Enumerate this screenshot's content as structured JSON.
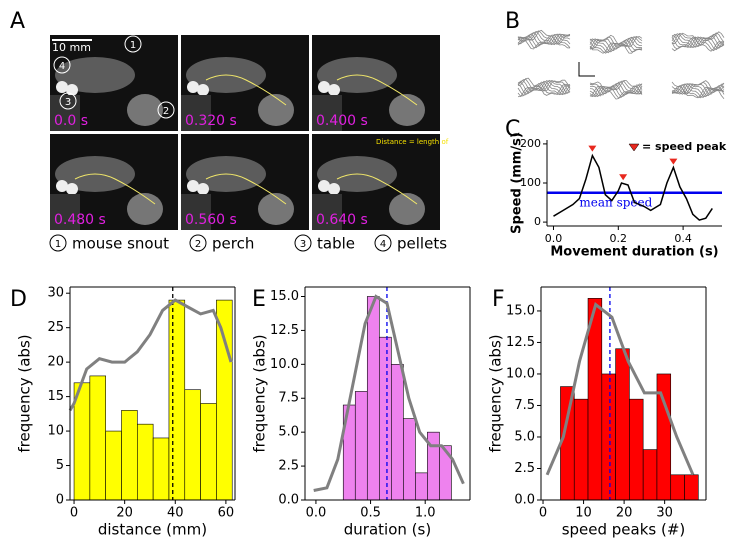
{
  "panel_labels": [
    "A",
    "B",
    "C",
    "D",
    "E",
    "F"
  ],
  "panel_a": {
    "scale_bar": "10 mm",
    "markers": [
      "1",
      "4",
      "3",
      "2"
    ],
    "frames": [
      "0.0 s",
      "0.320 s",
      "0.400 s",
      "0.480 s",
      "0.560 s",
      "0.640 s"
    ],
    "annotation": "Distance = length of",
    "legend": [
      {
        "number": "1",
        "label": "mouse snout"
      },
      {
        "number": "2",
        "label": "perch"
      },
      {
        "number": "3",
        "label": "table"
      },
      {
        "number": "4",
        "label": "pellets"
      }
    ]
  },
  "chart_data": [
    {
      "type": "line",
      "xlabel": "Movement duration (s)",
      "ylabel": "Speed (mm/s)",
      "x": [
        0.0,
        0.03,
        0.06,
        0.08,
        0.1,
        0.12,
        0.14,
        0.16,
        0.18,
        0.2,
        0.21,
        0.23,
        0.25,
        0.28,
        0.3,
        0.33,
        0.35,
        0.37,
        0.39,
        0.41,
        0.43,
        0.45,
        0.47,
        0.49
      ],
      "values": [
        15,
        30,
        45,
        60,
        110,
        170,
        140,
        70,
        55,
        80,
        100,
        95,
        50,
        40,
        30,
        45,
        100,
        140,
        90,
        60,
        20,
        5,
        10,
        35
      ],
      "color": "#000000",
      "peaks": {
        "x": [
          0.12,
          0.215,
          0.37
        ],
        "values": [
          175,
          102,
          142
        ],
        "color": "#e8281e",
        "label": "= speed peak"
      },
      "mean": {
        "value": 75,
        "label": "mean speed",
        "color": "#0000ee"
      },
      "xlim": [
        -0.02,
        0.52
      ],
      "ylim": [
        -10,
        210
      ],
      "xticks": [
        {
          "value": 0.0,
          "label": "0.0"
        },
        {
          "value": 0.2,
          "label": "0.2"
        },
        {
          "value": 0.4,
          "label": "0.4"
        }
      ],
      "yticks": [
        0,
        100,
        200
      ]
    },
    {
      "type": "histogram",
      "xlabel": "distance (mm)",
      "ylabel": "frequency (abs)",
      "bins": [
        0,
        6.25,
        12.5,
        18.75,
        25,
        31.25,
        37.5,
        43.75,
        50,
        56.25,
        62.5
      ],
      "values": [
        17,
        18,
        10,
        13,
        11,
        9,
        29,
        16,
        14,
        29
      ],
      "color": "#ffff00",
      "kde": {
        "x": [
          -1.6,
          0,
          5,
          10,
          15,
          20,
          25,
          30,
          35,
          40,
          45,
          50,
          55,
          58,
          62
        ],
        "values": [
          13,
          14,
          19,
          20.5,
          20,
          20,
          21.5,
          24,
          27.5,
          29,
          28,
          27,
          27.5,
          25,
          20
        ],
        "color": "#808080"
      },
      "mean": {
        "value": 39,
        "color": "#000000"
      },
      "xlim": [
        -1.6,
        63.6
      ],
      "ylim": [
        0,
        30.9
      ],
      "xticks": [
        0,
        20,
        40,
        60
      ],
      "yticks": [
        0,
        5,
        10,
        15,
        20,
        25,
        30
      ]
    },
    {
      "type": "histogram",
      "xlabel": "duration (s)",
      "ylabel": "frequency (abs)",
      "bins": [
        0.25,
        0.36,
        0.47,
        0.58,
        0.69,
        0.8,
        0.91,
        1.02,
        1.13,
        1.24
      ],
      "values": [
        7,
        8,
        15,
        12,
        10,
        6,
        2,
        5,
        4
      ],
      "color": "#ee82ee",
      "kde": {
        "x": [
          -0.02,
          0.1,
          0.2,
          0.35,
          0.45,
          0.55,
          0.65,
          0.75,
          0.85,
          0.95,
          1.05,
          1.15,
          1.25,
          1.35
        ],
        "values": [
          0.7,
          0.9,
          3,
          9,
          13,
          15,
          14.5,
          11,
          7.5,
          5,
          4,
          4,
          3,
          1.2
        ],
        "color": "#808080"
      },
      "mean": {
        "value": 0.65,
        "color": "#0000ee"
      },
      "xlim": [
        -0.1,
        1.41
      ],
      "ylim": [
        0,
        15.7
      ],
      "xticks": [
        {
          "value": 0,
          "label": "0.0"
        },
        {
          "value": 0.5,
          "label": "0.5"
        },
        {
          "value": 1,
          "label": "1.0"
        }
      ],
      "yticks": [
        {
          "value": 0,
          "label": "0.0"
        },
        {
          "value": 2.5,
          "label": "2.5"
        },
        {
          "value": 5,
          "label": "5.0"
        },
        {
          "value": 7.5,
          "label": "7.5"
        },
        {
          "value": 10,
          "label": "10.0"
        },
        {
          "value": 12.5,
          "label": "12.5"
        },
        {
          "value": 15,
          "label": "15.0"
        }
      ]
    },
    {
      "type": "histogram",
      "xlabel": "speed peaks (#)",
      "ylabel": "frequency (abs)",
      "bins": [
        4.3,
        7.7,
        11.1,
        14.5,
        17.9,
        21.3,
        24.7,
        28.1,
        31.5,
        34.9,
        38.3
      ],
      "values": [
        9,
        8,
        16,
        10,
        12,
        8,
        4,
        10,
        2,
        2
      ],
      "color": "#ff0000",
      "kde": {
        "x": [
          1,
          5,
          9,
          13,
          17,
          21,
          25,
          29,
          33,
          37
        ],
        "values": [
          2,
          5,
          11,
          15.5,
          14.5,
          11,
          8.5,
          8.5,
          5,
          2
        ],
        "color": "#808080"
      },
      "mean": {
        "value": 16.5,
        "color": "#0000ee"
      },
      "xlim": [
        -0.5,
        40.2
      ],
      "ylim": [
        0,
        16.9
      ],
      "xticks": [
        0,
        10,
        20,
        30
      ],
      "yticks": [
        {
          "value": 0,
          "label": "0.0"
        },
        {
          "value": 2.5,
          "label": "2.5"
        },
        {
          "value": 5,
          "label": "5.0"
        },
        {
          "value": 7.5,
          "label": "7.5"
        },
        {
          "value": 10,
          "label": "10.0"
        },
        {
          "value": 12.5,
          "label": "12.5"
        },
        {
          "value": 15,
          "label": "15.0"
        }
      ]
    }
  ]
}
